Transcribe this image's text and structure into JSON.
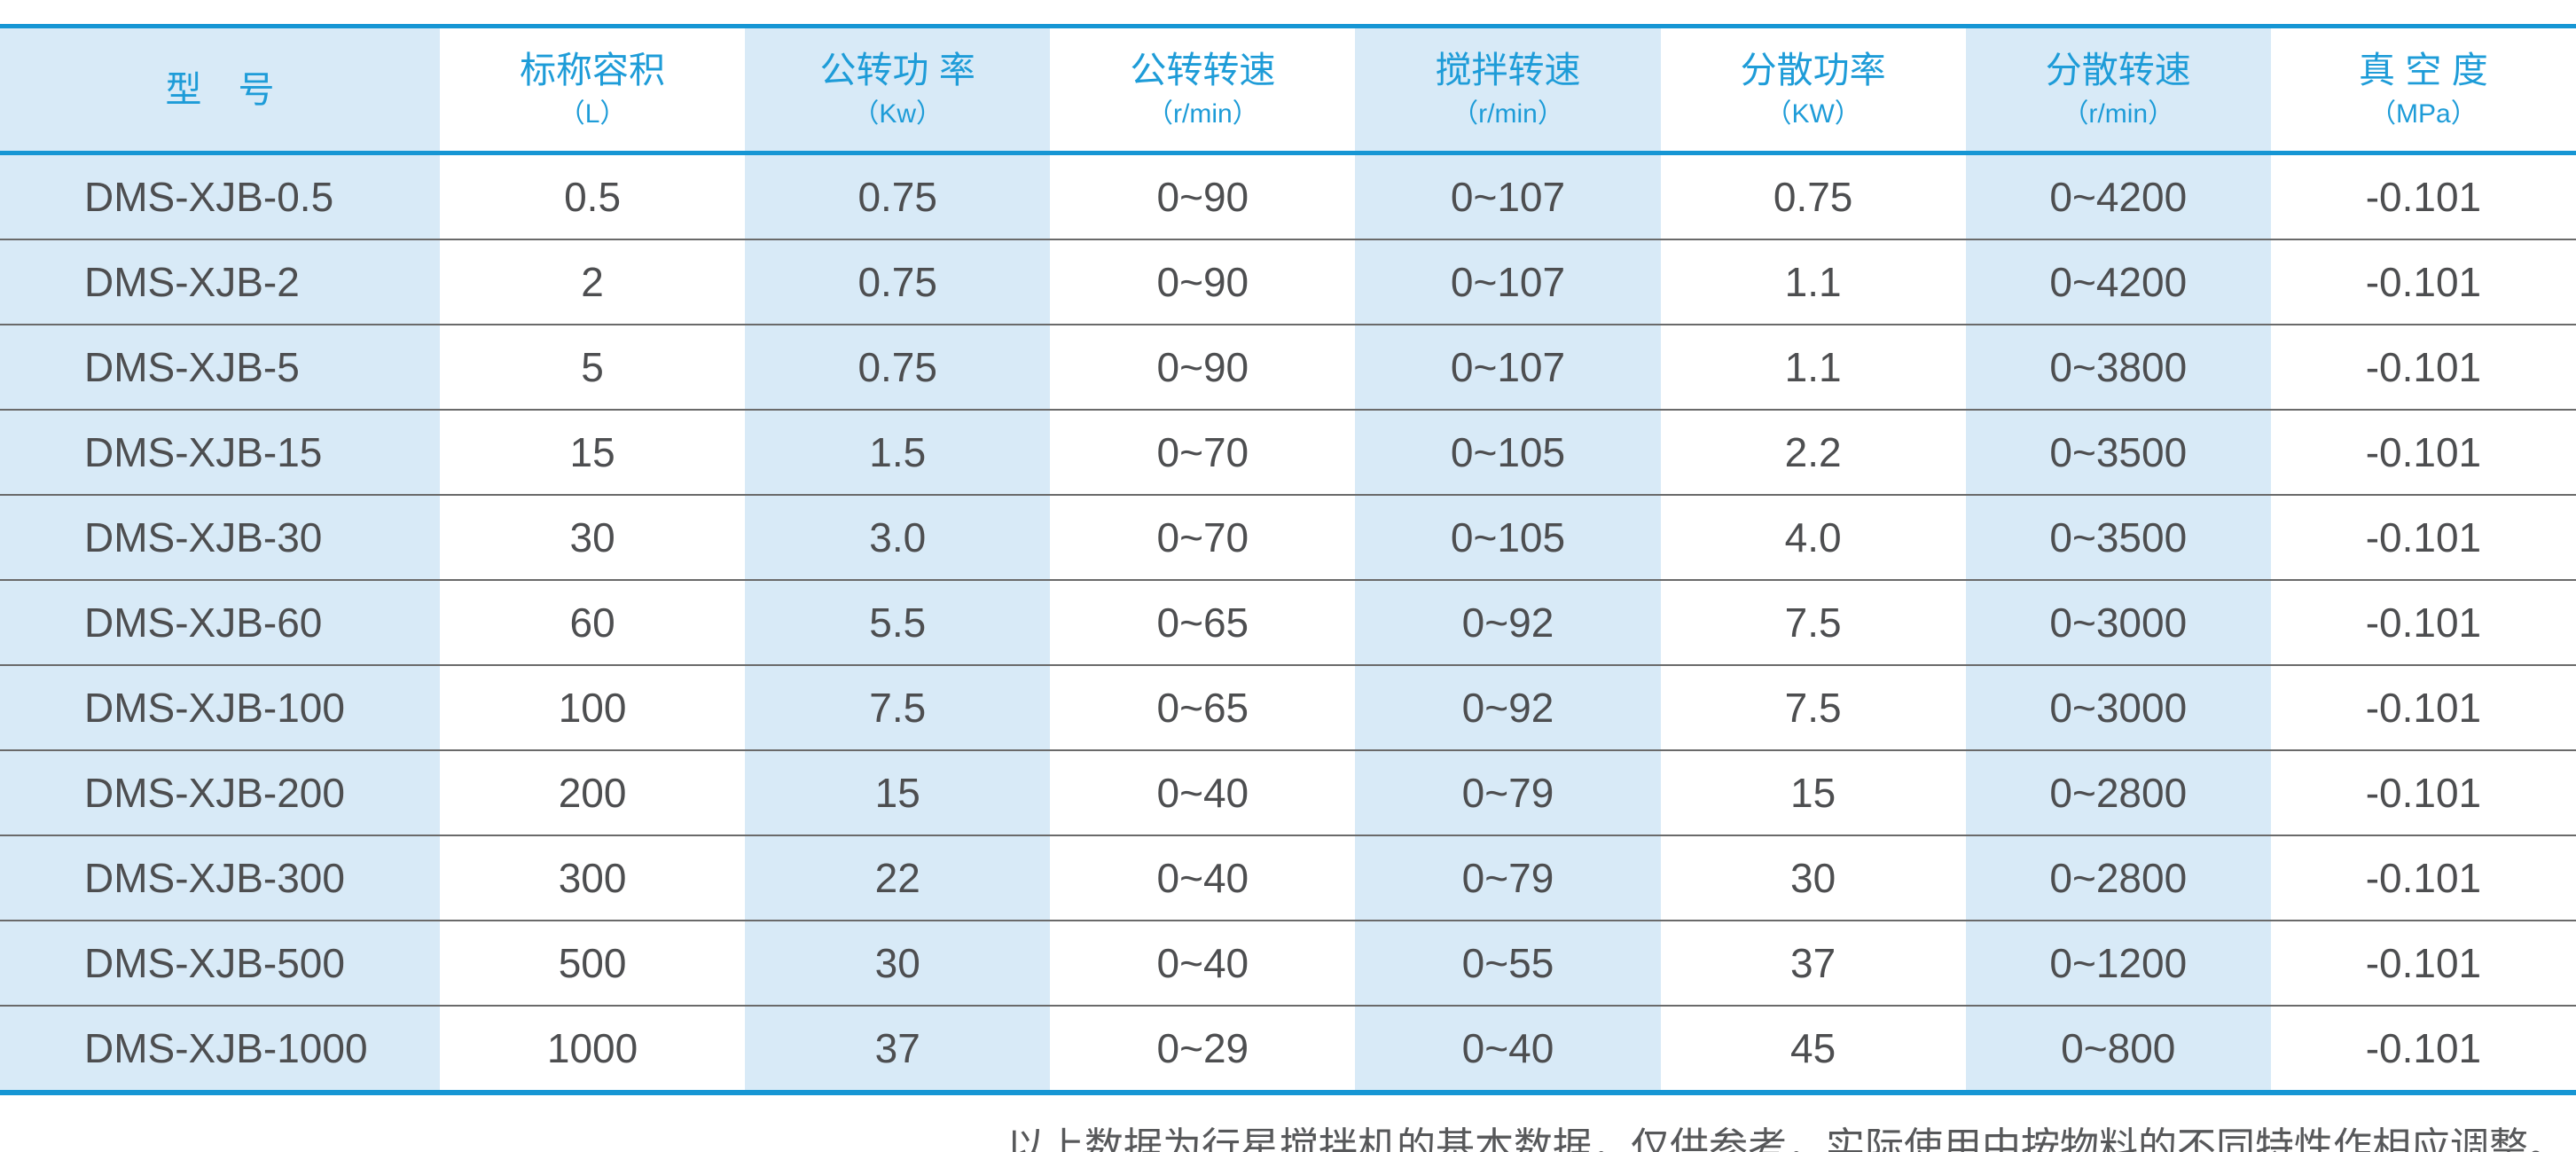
{
  "colors": {
    "accent_blue": "#1696D4",
    "header_text_blue": "#1E9CD8",
    "light_blue_column_bg": "#D8EAF7",
    "body_text": "#4D4E50",
    "row_divider": "#6A6A6A",
    "note_text": "#57585A"
  },
  "table": {
    "columns": [
      {
        "title": "型　号",
        "unit": ""
      },
      {
        "title": "标称容积",
        "unit": "（L）"
      },
      {
        "title": "公转功 率",
        "unit": "（Kw）"
      },
      {
        "title": "公转转速",
        "unit": "（r/min）"
      },
      {
        "title": "搅拌转速",
        "unit": "（r/min）"
      },
      {
        "title": "分散功率",
        "unit": "（KW）"
      },
      {
        "title": "分散转速",
        "unit": "（r/min）"
      },
      {
        "title": "真 空 度",
        "unit": "（MPa）"
      }
    ],
    "rows": [
      [
        "DMS-XJB-0.5",
        "0.5",
        "0.75",
        "0~90",
        "0~107",
        "0.75",
        "0~4200",
        "-0.101"
      ],
      [
        "DMS-XJB-2",
        "2",
        "0.75",
        "0~90",
        "0~107",
        "1.1",
        "0~4200",
        "-0.101"
      ],
      [
        "DMS-XJB-5",
        "5",
        "0.75",
        "0~90",
        "0~107",
        "1.1",
        "0~3800",
        "-0.101"
      ],
      [
        "DMS-XJB-15",
        "15",
        "1.5",
        "0~70",
        "0~105",
        "2.2",
        "0~3500",
        "-0.101"
      ],
      [
        "DMS-XJB-30",
        "30",
        "3.0",
        "0~70",
        "0~105",
        "4.0",
        "0~3500",
        "-0.101"
      ],
      [
        "DMS-XJB-60",
        "60",
        "5.5",
        "0~65",
        "0~92",
        "7.5",
        "0~3000",
        "-0.101"
      ],
      [
        "DMS-XJB-100",
        "100",
        "7.5",
        "0~65",
        "0~92",
        "7.5",
        "0~3000",
        "-0.101"
      ],
      [
        "DMS-XJB-200",
        "200",
        "15",
        "0~40",
        "0~79",
        "15",
        "0~2800",
        "-0.101"
      ],
      [
        "DMS-XJB-300",
        "300",
        "22",
        "0~40",
        "0~79",
        "30",
        "0~2800",
        "-0.101"
      ],
      [
        "DMS-XJB-500",
        "500",
        "30",
        "0~40",
        "0~55",
        "37",
        "0~1200",
        "-0.101"
      ],
      [
        "DMS-XJB-1000",
        "1000",
        "37",
        "0~29",
        "0~40",
        "45",
        "0~800",
        "-0.101"
      ]
    ]
  },
  "footer": {
    "note": "以上数据为行星搅拌机的基本数据，仅供参考，实际使用中按物料的不同特性作相应调整。"
  }
}
